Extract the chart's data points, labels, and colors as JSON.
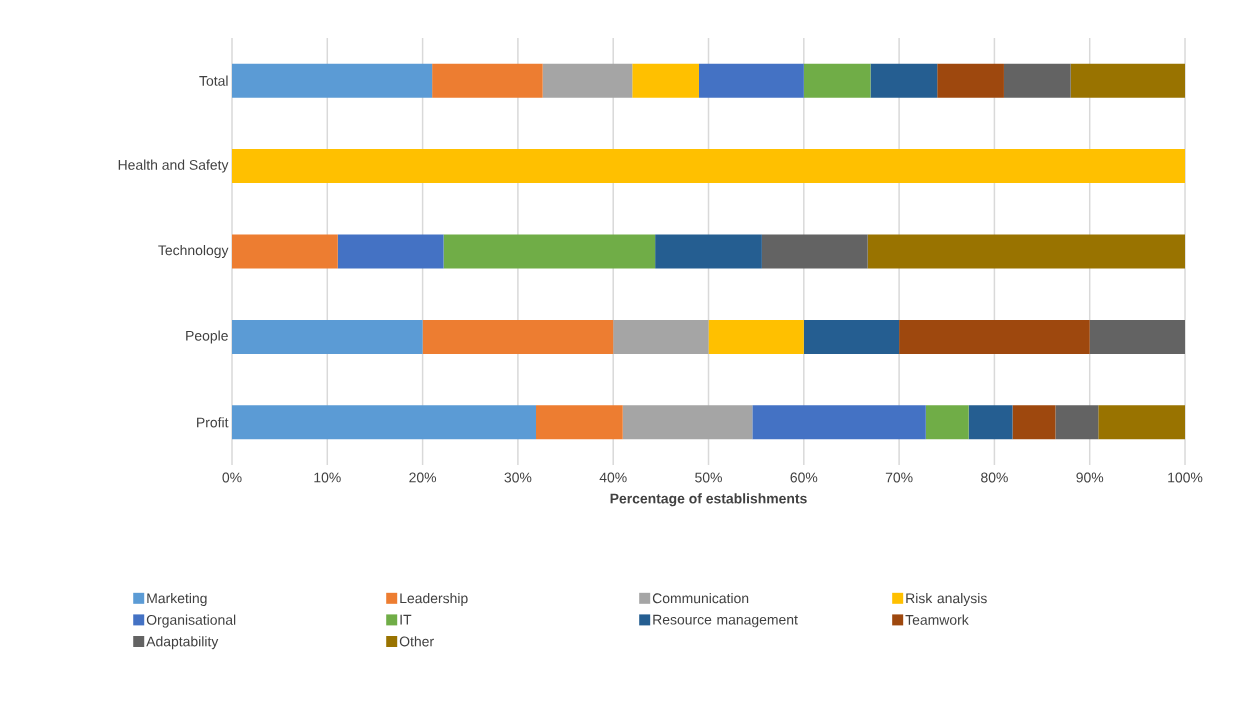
{
  "chart_data": {
    "type": "bar",
    "orientation": "horizontal",
    "stacked": true,
    "xlabel": "Percentage of establishments",
    "categories": [
      "Total",
      "Health and Safety",
      "Technology",
      "People",
      "Profit"
    ],
    "series": [
      {
        "name": "Marketing",
        "color": "#5b9bd5",
        "values": [
          21,
          0,
          0,
          20,
          31.9
        ]
      },
      {
        "name": "Leadership",
        "color": "#ed7d31",
        "values": [
          11.6,
          0,
          11.1,
          20,
          9.1
        ]
      },
      {
        "name": "Communication",
        "color": "#a5a5a5",
        "values": [
          9.4,
          0,
          0,
          10,
          13.6
        ]
      },
      {
        "name": "Risk analysis",
        "color": "#ffc000",
        "values": [
          7,
          100,
          0,
          10,
          0
        ]
      },
      {
        "name": "Organisational",
        "color": "#4472c4",
        "values": [
          11,
          0,
          11.1,
          0,
          18.2
        ]
      },
      {
        "name": "IT",
        "color": "#70ad47",
        "values": [
          7,
          0,
          22.2,
          0,
          4.5
        ]
      },
      {
        "name": "Resource management",
        "color": "#255e91",
        "values": [
          7,
          0,
          11.2,
          10,
          4.6
        ]
      },
      {
        "name": "Teamwork",
        "color": "#9e480e",
        "values": [
          7,
          0,
          0,
          20,
          4.5
        ]
      },
      {
        "name": "Adaptability",
        "color": "#636363",
        "values": [
          7,
          0,
          11.1,
          10,
          4.5
        ]
      },
      {
        "name": "Other",
        "color": "#997300",
        "values": [
          12,
          0,
          33.3,
          0,
          9.1
        ]
      }
    ],
    "xlim": [
      0,
      100
    ],
    "xticks": [
      {
        "value": 0,
        "label": "0%"
      },
      {
        "value": 10,
        "label": "10%"
      },
      {
        "value": 20,
        "label": "20%"
      },
      {
        "value": 30,
        "label": "30%"
      },
      {
        "value": 40,
        "label": "40%"
      },
      {
        "value": 50,
        "label": "50%"
      },
      {
        "value": 60,
        "label": "60%"
      },
      {
        "value": 70,
        "label": "70%"
      },
      {
        "value": 80,
        "label": "80%"
      },
      {
        "value": 90,
        "label": "90%"
      },
      {
        "value": 100,
        "label": "100%"
      }
    ],
    "grid": "x",
    "legend": "bottom"
  }
}
